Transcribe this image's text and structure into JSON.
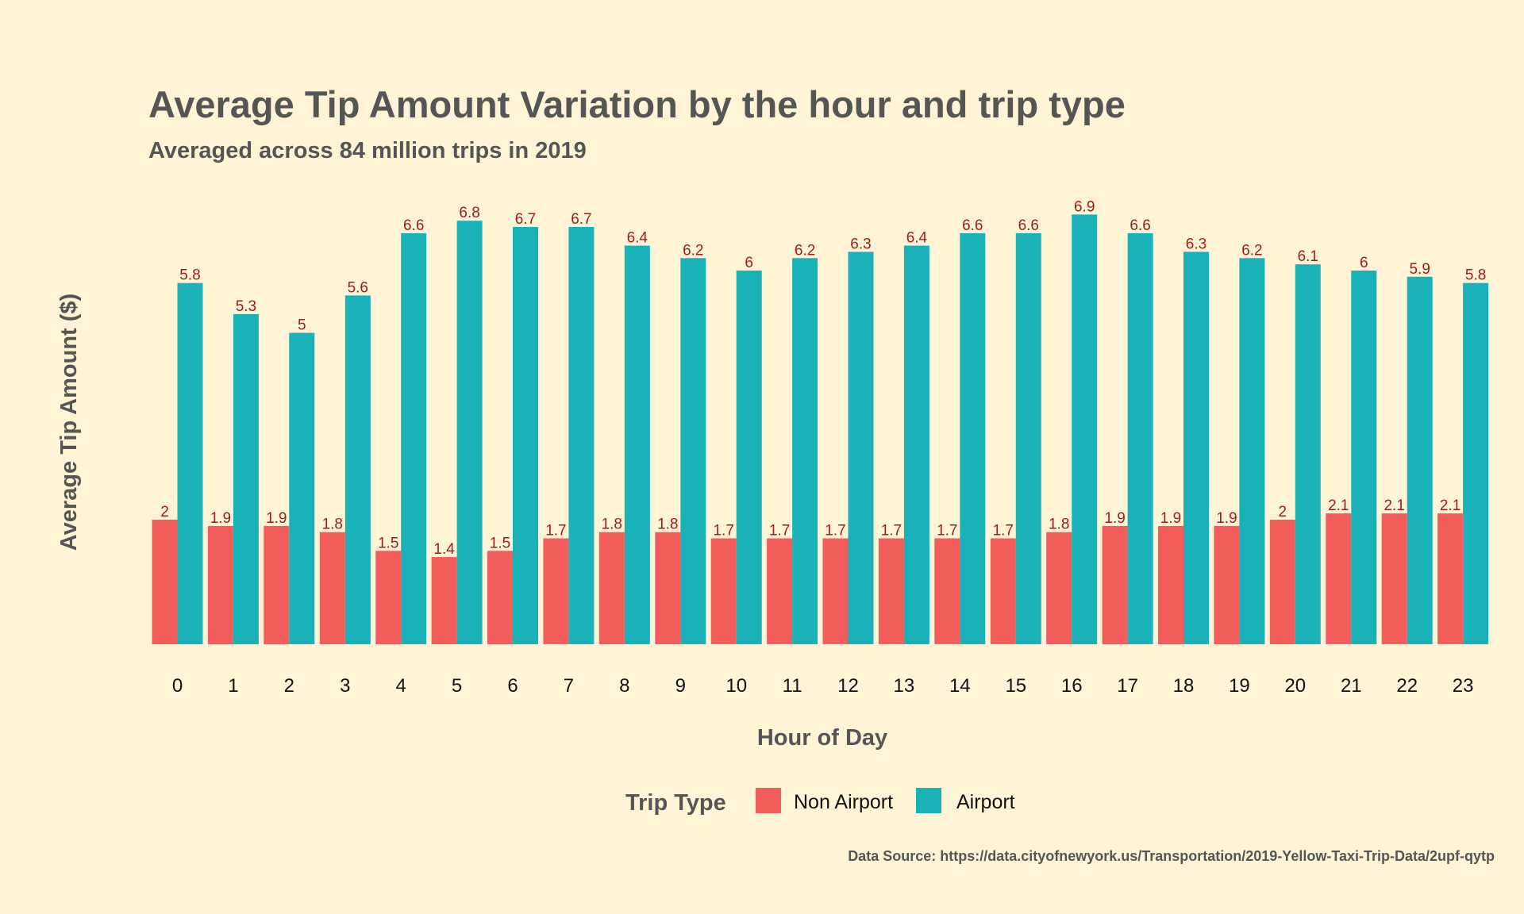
{
  "chart_data": {
    "type": "bar",
    "title": "Average Tip Amount Variation by the hour and trip type",
    "subtitle": "Averaged across 84 million trips in 2019",
    "xlabel": "Hour of Day",
    "ylabel": "Average Tip Amount ($)",
    "categories": [
      "0",
      "1",
      "2",
      "3",
      "4",
      "5",
      "6",
      "7",
      "8",
      "9",
      "10",
      "11",
      "12",
      "13",
      "14",
      "15",
      "16",
      "17",
      "18",
      "19",
      "20",
      "21",
      "22",
      "23"
    ],
    "series": [
      {
        "name": "Non Airport",
        "color": "#F25C5A",
        "values": [
          2.0,
          1.9,
          1.9,
          1.8,
          1.5,
          1.4,
          1.5,
          1.7,
          1.8,
          1.8,
          1.7,
          1.7,
          1.7,
          1.7,
          1.7,
          1.7,
          1.8,
          1.9,
          1.9,
          1.9,
          2.0,
          2.1,
          2.1,
          2.1
        ],
        "labels": [
          "2",
          "1.9",
          "1.9",
          "1.8",
          "1.5",
          "1.4",
          "1.5",
          "1.7",
          "1.8",
          "1.8",
          "1.7",
          "1.7",
          "1.7",
          "1.7",
          "1.7",
          "1.7",
          "1.8",
          "1.9",
          "1.9",
          "1.9",
          "2",
          "2.1",
          "2.1",
          "2.1"
        ]
      },
      {
        "name": "Airport",
        "color": "#18B2B8",
        "values": [
          5.8,
          5.3,
          5.0,
          5.6,
          6.6,
          6.8,
          6.7,
          6.7,
          6.4,
          6.2,
          6.0,
          6.2,
          6.3,
          6.4,
          6.6,
          6.6,
          6.9,
          6.6,
          6.3,
          6.2,
          6.1,
          6.0,
          5.9,
          5.8
        ],
        "labels": [
          "5.8",
          "5.3",
          "5",
          "5.6",
          "6.6",
          "6.8",
          "6.7",
          "6.7",
          "6.4",
          "6.2",
          "6",
          "6.2",
          "6.3",
          "6.4",
          "6.6",
          "6.6",
          "6.9",
          "6.6",
          "6.3",
          "6.2",
          "6.1",
          "6",
          "5.9",
          "5.8"
        ]
      }
    ],
    "ylim": [
      0,
      7
    ],
    "grid": false,
    "legend": {
      "title": "Trip Type",
      "placement": "bottom"
    },
    "caption": "Data Source: https://data.cityofnewyork.us/Transportation/2019-Yellow-Taxi-Trip-Data/2upf-qytp"
  },
  "colors": {
    "background": "#FFF5D6",
    "label_color": "#9E1B1B",
    "title_color": "#555555"
  }
}
